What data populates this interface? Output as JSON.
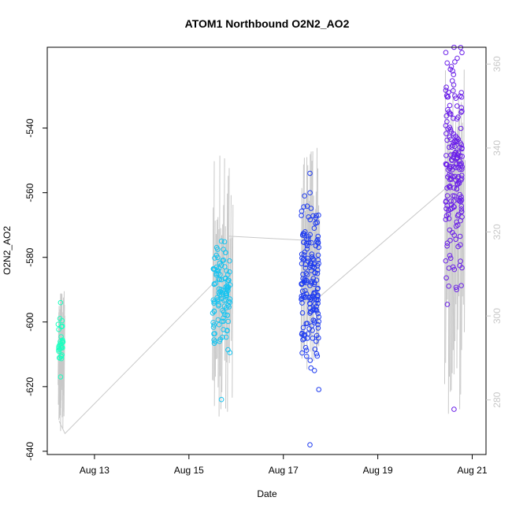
{
  "chart_data": {
    "type": "scatter",
    "title": "ATOM1 Northbound O2N2_AO2",
    "xlabel": "Date",
    "ylabel": "O2N2_AO2",
    "xlim": [
      "2021-08-12T00:00",
      "2021-08-21T07:00"
    ],
    "ylim": [
      -641,
      -515
    ],
    "x_ticks": [
      {
        "x": "2021-08-13",
        "label": "Aug 13"
      },
      {
        "x": "2021-08-15",
        "label": "Aug 15"
      },
      {
        "x": "2021-08-17",
        "label": "Aug 17"
      },
      {
        "x": "2021-08-19",
        "label": "Aug 19"
      },
      {
        "x": "2021-08-21",
        "label": "Aug 21"
      }
    ],
    "y_ticks": [
      -640,
      -620,
      -600,
      -580,
      -560,
      -540
    ],
    "y2_ticks": [
      280,
      300,
      320,
      340,
      360
    ],
    "y2lim": [
      267,
      364
    ],
    "grid": false,
    "series": [
      {
        "color": "#1dffc0",
        "x_range": [
          "2021-08-12T05:30",
          "2021-08-12T08:00"
        ],
        "y_range": [
          -617,
          -594
        ],
        "y_center": -605
      },
      {
        "color": "#17c4f0",
        "x_range": [
          "2021-08-15T12:00",
          "2021-08-15T21:00"
        ],
        "y_range": [
          -624,
          -575
        ],
        "y_center": -592
      },
      {
        "color": "#1f3cf0",
        "x_range": [
          "2021-08-17T09:00",
          "2021-08-17T18:00"
        ],
        "y_range": [
          -638,
          -554
        ],
        "y_center": -587
      },
      {
        "color": "#6a1fe8",
        "x_range": [
          "2021-08-20T10:30",
          "2021-08-20T19:00"
        ],
        "y_range": [
          -627,
          -515
        ],
        "y_center": -552
      }
    ],
    "secondary_line": {
      "color": "#c8c8c8",
      "points": [
        {
          "x": "2021-08-12T06:00",
          "y": 275
        },
        {
          "x": "2021-08-12T09:00",
          "y": 272
        },
        {
          "x": "2021-08-15T15:00",
          "y": 309
        },
        {
          "x": "2021-08-15T20:00",
          "y": 319
        },
        {
          "x": "2021-08-17T12:00",
          "y": 318
        },
        {
          "x": "2021-08-17T17:00",
          "y": 304
        },
        {
          "x": "2021-08-20T12:00",
          "y": 331
        },
        {
          "x": "2021-08-20T18:00",
          "y": 338
        }
      ],
      "bursts": [
        {
          "x_range": [
            "2021-08-12T05:30",
            "2021-08-12T08:30"
          ],
          "y_range": [
            272,
            307
          ]
        },
        {
          "x_range": [
            "2021-08-15T12:00",
            "2021-08-15T22:00"
          ],
          "y_range": [
            276,
            340
          ]
        },
        {
          "x_range": [
            "2021-08-17T09:00",
            "2021-08-17T18:00"
          ],
          "y_range": [
            285,
            343
          ]
        },
        {
          "x_range": [
            "2021-08-20T10:00",
            "2021-08-20T20:00"
          ],
          "y_range": [
            276,
            364
          ]
        }
      ]
    }
  }
}
